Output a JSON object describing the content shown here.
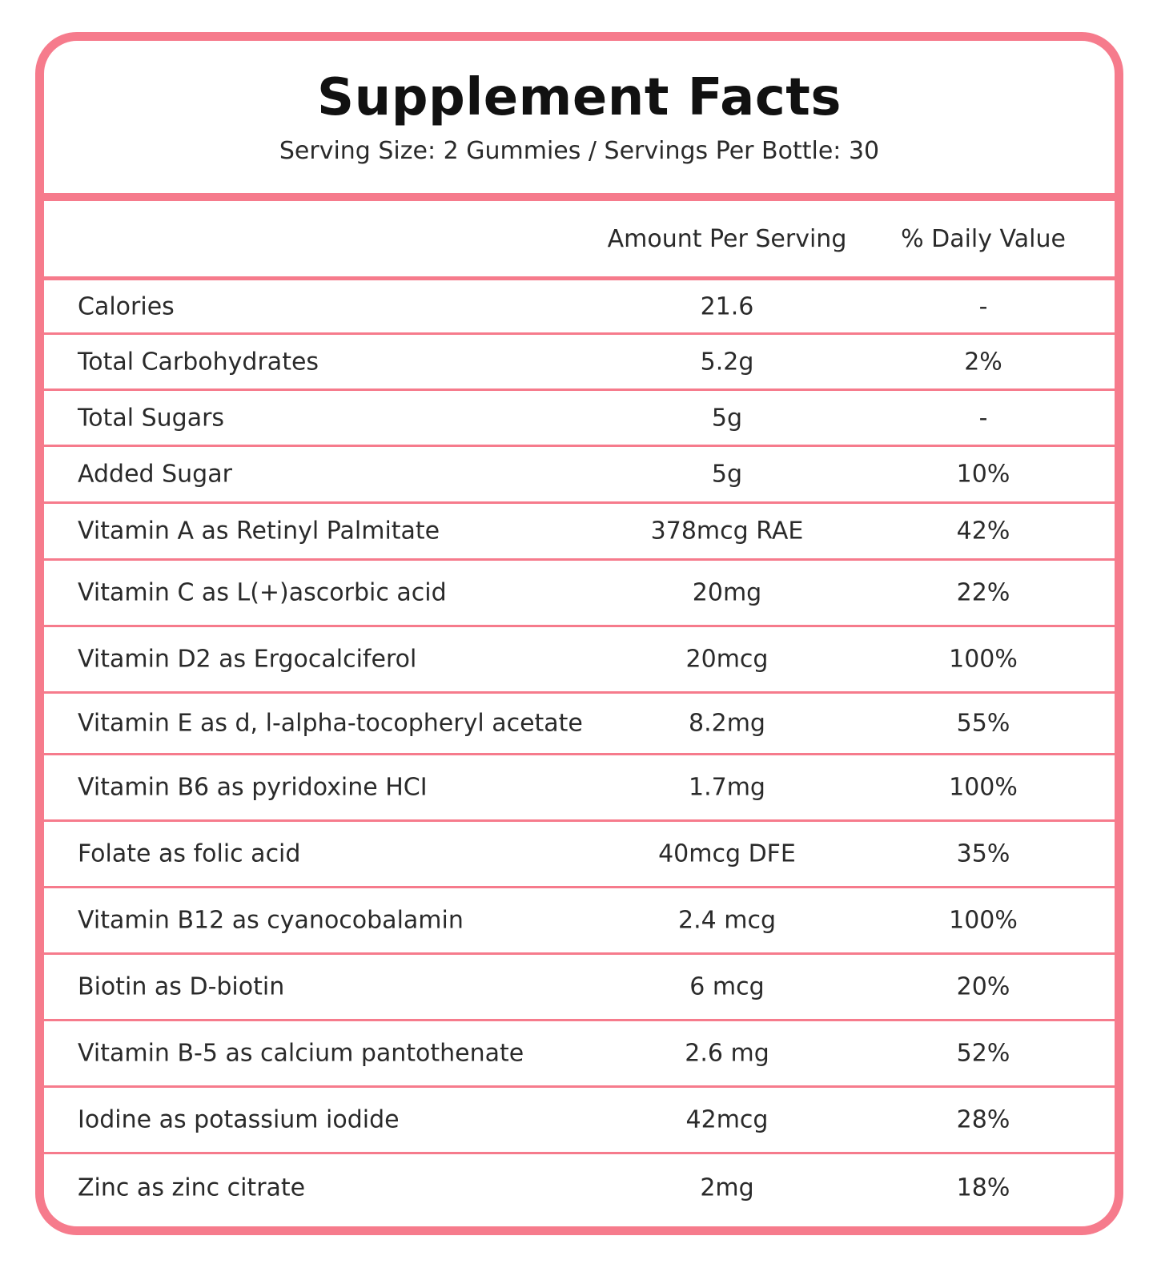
{
  "header": {
    "title": "Supplement Facts",
    "subtitle": "Serving Size: 2 Gummies / Servings Per Bottle: 30"
  },
  "columns": {
    "amount": "Amount Per Serving",
    "daily_value": "% Daily Value"
  },
  "accent_color": "#f67b8c",
  "rows": [
    {
      "name": "Calories",
      "amount": "21.6",
      "daily": "-"
    },
    {
      "name": "Total Carbohydrates",
      "amount": "5.2g",
      "daily": "2%"
    },
    {
      "name": "Total Sugars",
      "amount": "5g",
      "daily": "-"
    },
    {
      "name": "Added Sugar",
      "amount": "5g",
      "daily": "10%"
    },
    {
      "name": "Vitamin A as Retinyl Palmitate",
      "amount": "378mcg RAE",
      "daily": "42%"
    },
    {
      "name": "Vitamin C as L(+)ascorbic acid",
      "amount": "20mg",
      "daily": "22%"
    },
    {
      "name": "Vitamin D2 as Ergocalciferol",
      "amount": "20mcg",
      "daily": "100%"
    },
    {
      "name": "Vitamin E as d, l-alpha-tocopheryl acetate",
      "amount": "8.2mg",
      "daily": "55%"
    },
    {
      "name": "Vitamin B6 as pyridoxine HCI",
      "amount": "1.7mg",
      "daily": "100%"
    },
    {
      "name": "Folate as folic acid",
      "amount": "40mcg DFE",
      "daily": "35%"
    },
    {
      "name": "Vitamin B12 as cyanocobalamin",
      "amount": "2.4 mcg",
      "daily": "100%"
    },
    {
      "name": "Biotin as D-biotin",
      "amount": "6 mcg",
      "daily": "20%"
    },
    {
      "name": "Vitamin B-5 as calcium pantothenate",
      "amount": "2.6 mg",
      "daily": "52%"
    },
    {
      "name": "Iodine as potassium iodide",
      "amount": "42mcg",
      "daily": "28%"
    },
    {
      "name": "Zinc as zinc citrate",
      "amount": "2mg",
      "daily": "18%"
    }
  ]
}
